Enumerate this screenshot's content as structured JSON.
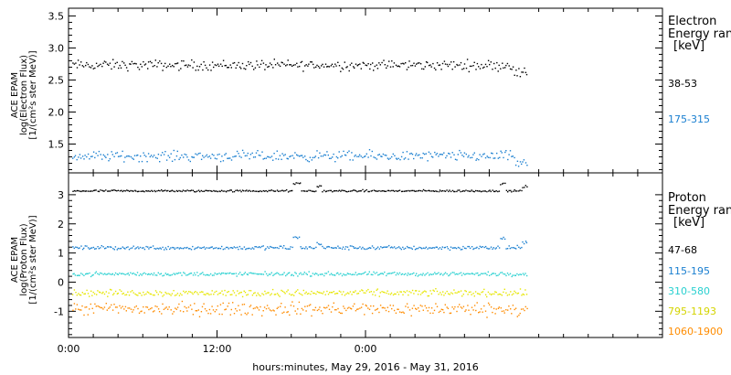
{
  "chart_data": [
    {
      "type": "scatter",
      "panel": "electron",
      "ylabel_lines": [
        "ACE EPAM",
        "log(Electron Flux)",
        "[1/(cm²s ster MeV)]"
      ],
      "yticks": [
        "3.5",
        "3.0",
        "2.5",
        "2.0",
        "1.5"
      ],
      "ylim": [
        1.05,
        3.62
      ],
      "legend_title": "Electron",
      "legend_subtitle": "Energy ran",
      "legend_unit": "[keV]",
      "series": [
        {
          "name": "38-53",
          "color": "#000000",
          "baseline": 2.74,
          "noise": 0.07,
          "x_end_hours": 37.0
        },
        {
          "name": "175-315",
          "color": "#1a7fd0",
          "baseline": 1.32,
          "noise": 0.07,
          "x_end_hours": 37.0
        }
      ]
    },
    {
      "type": "scatter",
      "panel": "proton",
      "ylabel_lines": [
        "ACE EPAM",
        "log(Proton Flux)",
        "[1/(cm²s ster MeV)]"
      ],
      "yticks": [
        "3",
        "2",
        "1",
        "0",
        "-1"
      ],
      "ylim": [
        -1.9,
        3.75
      ],
      "legend_title": "Proton",
      "legend_subtitle": "Energy ran",
      "legend_unit": "[keV]",
      "series": [
        {
          "name": "47-68",
          "color": "#000000",
          "baseline": 3.15,
          "noise": 0.03,
          "x_end_hours": 37.0
        },
        {
          "name": "115-195",
          "color": "#1a7fd0",
          "baseline": 1.2,
          "noise": 0.06,
          "x_end_hours": 37.0
        },
        {
          "name": "310-580",
          "color": "#28d0d0",
          "baseline": 0.3,
          "noise": 0.06,
          "x_end_hours": 37.0
        },
        {
          "name": "795-1193",
          "color": "#e6e600",
          "baseline": -0.35,
          "noise": 0.1,
          "x_end_hours": 37.0
        },
        {
          "name": "1060-1900",
          "color": "#ff8c00",
          "baseline": -0.9,
          "noise": 0.2,
          "x_end_hours": 37.0
        }
      ]
    }
  ],
  "x_axis": {
    "xlim_hours": [
      0,
      48
    ],
    "ticks": [
      {
        "hours": 0,
        "label": "0:00"
      },
      {
        "hours": 12,
        "label": "12:00"
      },
      {
        "hours": 24,
        "label": "0:00"
      }
    ],
    "xlabel": "hours:minutes, May 29, 2016 - May 31, 2016"
  }
}
